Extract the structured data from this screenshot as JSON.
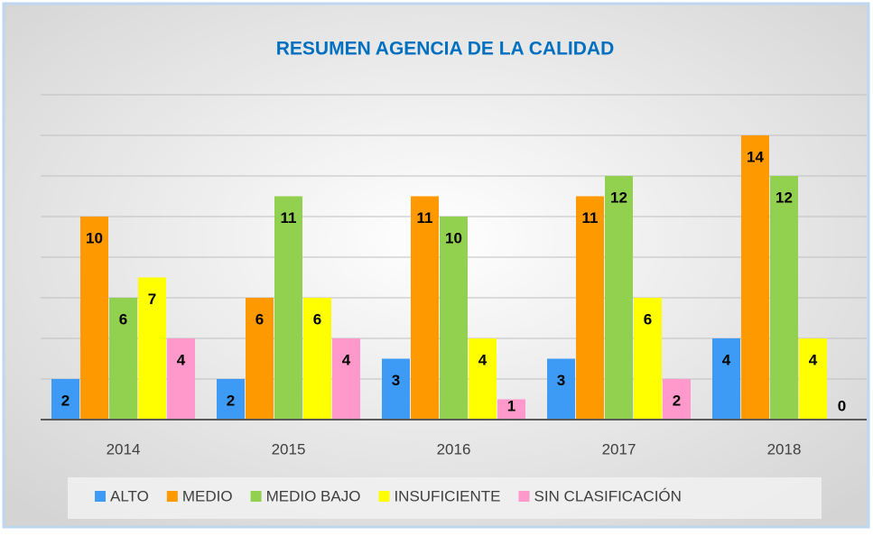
{
  "chart_data": {
    "type": "bar",
    "title": "RESUMEN AGENCIA DE LA CALIDAD",
    "categories": [
      "2014",
      "2015",
      "2016",
      "2017",
      "2018"
    ],
    "series": [
      {
        "name": "ALTO",
        "color": "#3d9bf5",
        "values": [
          2,
          2,
          3,
          3,
          4
        ]
      },
      {
        "name": "MEDIO",
        "color": "#ff9900",
        "values": [
          10,
          6,
          11,
          11,
          14
        ]
      },
      {
        "name": "MEDIO BAJO",
        "color": "#92d050",
        "values": [
          6,
          11,
          10,
          12,
          12
        ]
      },
      {
        "name": "INSUFICIENTE",
        "color": "#ffff00",
        "values": [
          7,
          6,
          4,
          6,
          4
        ]
      },
      {
        "name": "SIN CLASIFICACIÓN",
        "color": "#ff99cc",
        "values": [
          4,
          4,
          1,
          2,
          0
        ]
      }
    ],
    "ylim": [
      0,
      16
    ],
    "yticks": [
      0,
      2,
      4,
      6,
      8,
      10,
      12,
      14,
      16
    ],
    "grid": true,
    "legend": "bottom"
  }
}
